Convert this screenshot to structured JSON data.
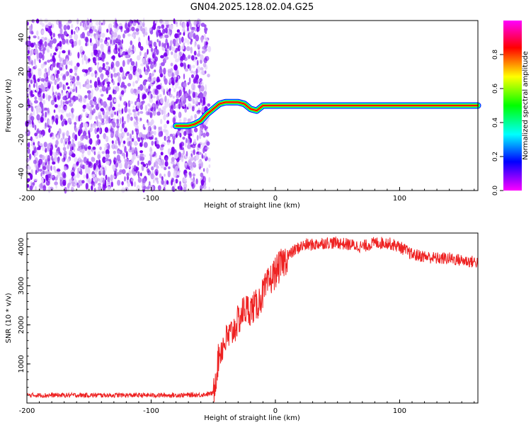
{
  "title": "GN04.2025.128.02.04.G25",
  "chart_data": [
    {
      "type": "heatmap",
      "xlabel": "Height of straight line (km)",
      "ylabel": "Frequency (Hz)",
      "xlim": [
        -200,
        163
      ],
      "ylim": [
        -50,
        50
      ],
      "xticks": [
        -200,
        -100,
        0,
        100
      ],
      "yticks": [
        -40,
        -20,
        0,
        20,
        40
      ],
      "noise_region": {
        "x_from": -200,
        "x_to": -53,
        "colors": [
          "#7a00f0",
          "#9b4cf2",
          "#c79bf6",
          "#e2cdfb"
        ]
      },
      "signal_track": {
        "x": [
          -80,
          -75,
          -70,
          -65,
          -60,
          -55,
          -50,
          -45,
          -40,
          -35,
          -30,
          -25,
          -20,
          -15,
          -10,
          -5,
          0,
          25,
          50,
          75,
          100,
          125,
          163
        ],
        "y": [
          -12,
          -12,
          -12,
          -11,
          -9,
          -5,
          -2,
          1,
          2,
          2,
          2,
          1,
          -2,
          -3,
          0,
          0,
          0,
          0,
          0,
          0,
          0,
          0,
          0
        ]
      },
      "grid": false
    },
    {
      "type": "colorbar",
      "label": "Normalized spectral amplitude",
      "range": [
        0.0,
        1.0
      ],
      "ticks": [
        "0.0",
        "0.2",
        "0.4",
        "0.6",
        "0.8"
      ],
      "colors": [
        "#ff00ff",
        "#ff0000",
        "#ffff00",
        "#00ff00",
        "#00ffff",
        "#0000ff",
        "#ff00ff"
      ]
    },
    {
      "type": "line",
      "xlabel": "Height of straight line (km)",
      "ylabel": "SNR (10 * v/v)",
      "xlim": [
        -200,
        163
      ],
      "ylim": [
        0,
        4350
      ],
      "xticks": [
        -200,
        -100,
        0,
        100
      ],
      "yticks": [
        1000,
        2000,
        3000,
        4000
      ],
      "color": "#ee2222",
      "x": [
        -200,
        -180,
        -160,
        -140,
        -120,
        -100,
        -80,
        -60,
        -50,
        -45,
        -40,
        -35,
        -30,
        -25,
        -20,
        -15,
        -10,
        -5,
        0,
        5,
        10,
        15,
        20,
        25,
        30,
        40,
        50,
        60,
        70,
        80,
        90,
        100,
        110,
        120,
        130,
        140,
        150,
        163
      ],
      "y": [
        200,
        200,
        200,
        200,
        200,
        200,
        200,
        210,
        250,
        1300,
        1600,
        1800,
        2100,
        2400,
        2400,
        2500,
        2800,
        3100,
        3350,
        3550,
        3750,
        3900,
        4000,
        4050,
        4050,
        4100,
        4100,
        4050,
        4000,
        4100,
        4100,
        4000,
        3800,
        3750,
        3700,
        3700,
        3650,
        3600
      ],
      "grid": false
    }
  ]
}
